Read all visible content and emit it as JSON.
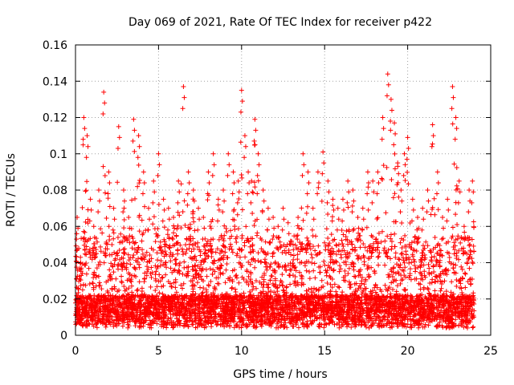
{
  "chart_data": {
    "type": "scatter",
    "title": "Day 069 of 2021, Rate Of TEC Index for receiver p422",
    "xlabel": "GPS time / hours",
    "ylabel": "ROTI / TECUs",
    "xlim": [
      0,
      25
    ],
    "ylim": [
      0,
      0.16
    ],
    "xticks": [
      0,
      5,
      10,
      15,
      20,
      25
    ],
    "xtick_labels": [
      "0",
      "5",
      "10",
      "15",
      "20",
      "25"
    ],
    "yticks": [
      0,
      0.02,
      0.04,
      0.06,
      0.08,
      0.1,
      0.12,
      0.14,
      0.16
    ],
    "ytick_labels": [
      "0",
      "0.02",
      "0.04",
      "0.06",
      "0.08",
      "0.1",
      "0.12",
      "0.14",
      "0.16"
    ],
    "grid": true,
    "marker": "+",
    "color": "#ff0000",
    "x_range_data": [
      0,
      24
    ],
    "series": [
      {
        "x": [
          0.1,
          0.3,
          0.5,
          0.7,
          0.9,
          1.1,
          1.4,
          1.7,
          2.0,
          2.3,
          2.6,
          2.9,
          3.2,
          3.5,
          3.8,
          4.1,
          4.4,
          4.7,
          5.0,
          5.3,
          5.6,
          5.9,
          6.2,
          6.5,
          6.8,
          7.1,
          7.4,
          7.7,
          8.0,
          8.3,
          8.6,
          8.9,
          9.2,
          9.5,
          9.8,
          10.0,
          10.2,
          10.4,
          10.6,
          10.8,
          11.0,
          11.3,
          11.6,
          11.9,
          12.2,
          12.5,
          12.8,
          13.1,
          13.4,
          13.7,
          14.0,
          14.3,
          14.6,
          14.9,
          15.2,
          15.5,
          15.8,
          16.1,
          16.4,
          16.7,
          17.0,
          17.3,
          17.6,
          17.9,
          18.2,
          18.5,
          18.8,
          19.0,
          19.2,
          19.4,
          19.6,
          19.8,
          20.0,
          20.3,
          20.6,
          20.9,
          21.2,
          21.5,
          21.8,
          22.1,
          22.4,
          22.7,
          22.9,
          23.1,
          23.4,
          23.7,
          23.9
        ],
        "y": [
          0.065,
          0.043,
          0.12,
          0.11,
          0.075,
          0.06,
          0.08,
          0.134,
          0.09,
          0.07,
          0.115,
          0.08,
          0.065,
          0.119,
          0.11,
          0.09,
          0.07,
          0.085,
          0.1,
          0.075,
          0.07,
          0.065,
          0.085,
          0.137,
          0.09,
          0.08,
          0.07,
          0.065,
          0.09,
          0.1,
          0.075,
          0.08,
          0.1,
          0.09,
          0.085,
          0.135,
          0.11,
          0.09,
          0.085,
          0.119,
          0.1,
          0.08,
          0.07,
          0.065,
          0.06,
          0.07,
          0.062,
          0.05,
          0.065,
          0.1,
          0.09,
          0.07,
          0.09,
          0.101,
          0.085,
          0.075,
          0.07,
          0.075,
          0.085,
          0.08,
          0.065,
          0.07,
          0.09,
          0.085,
          0.09,
          0.12,
          0.144,
          0.13,
          0.117,
          0.095,
          0.08,
          0.1,
          0.109,
          0.075,
          0.065,
          0.07,
          0.08,
          0.116,
          0.09,
          0.065,
          0.075,
          0.137,
          0.12,
          0.085,
          0.06,
          0.08,
          0.085
        ]
      }
    ]
  }
}
